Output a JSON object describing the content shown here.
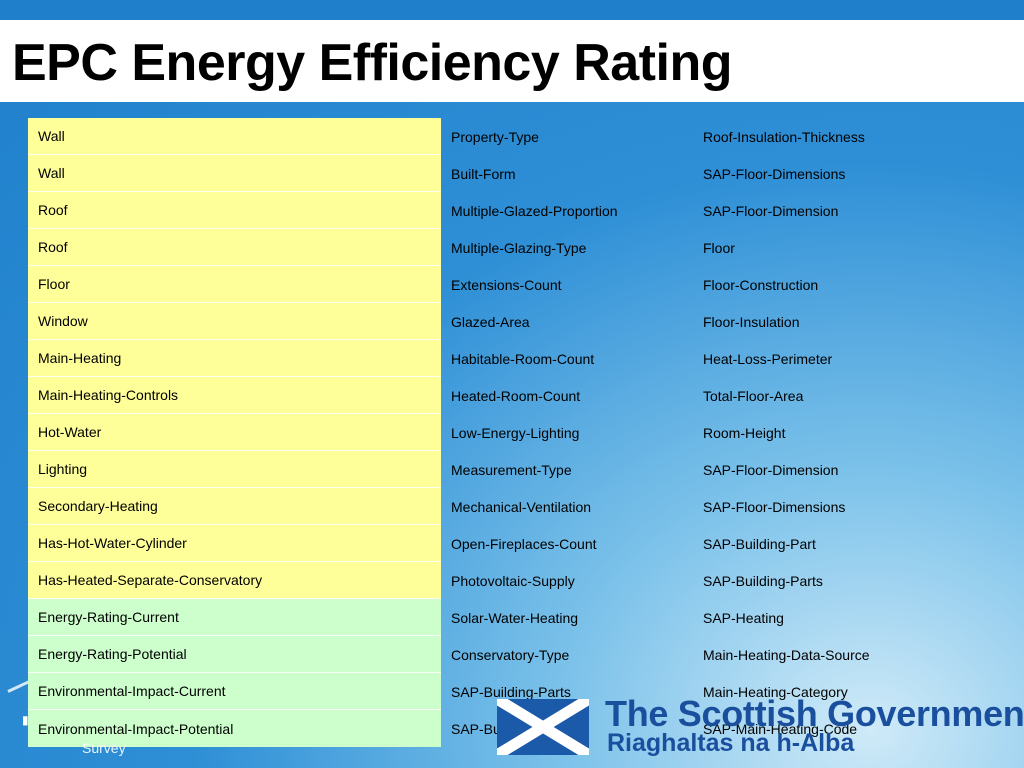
{
  "title": "EPC Energy Efficiency Rating",
  "column1": [
    {
      "label": "Wall",
      "color": "#ffff99"
    },
    {
      "label": "Wall",
      "color": "#ffff99"
    },
    {
      "label": "Roof",
      "color": "#ffff99"
    },
    {
      "label": "Roof",
      "color": "#ffff99"
    },
    {
      "label": "Floor",
      "color": "#ffff99"
    },
    {
      "label": "Window",
      "color": "#ffff99"
    },
    {
      "label": "Main-Heating",
      "color": "#ffff99"
    },
    {
      "label": "Main-Heating-Controls",
      "color": "#ffff99"
    },
    {
      "label": "Hot-Water",
      "color": "#ffff99"
    },
    {
      "label": "Lighting",
      "color": "#ffff99"
    },
    {
      "label": "Secondary-Heating",
      "color": "#ffff99"
    },
    {
      "label": "Has-Hot-Water-Cylinder",
      "color": "#ffff99"
    },
    {
      "label": "Has-Heated-Separate-Conservatory",
      "color": "#ffff99"
    },
    {
      "label": "Energy-Rating-Current",
      "color": "#ccffcc"
    },
    {
      "label": "Energy-Rating-Potential",
      "color": "#ccffcc"
    },
    {
      "label": "Environmental-Impact-Current",
      "color": "#ccffcc"
    },
    {
      "label": "Environmental-Impact-Potential",
      "color": "#ccffcc"
    }
  ],
  "column2": [
    "Property-Type",
    "Built-Form",
    "Multiple-Glazed-Proportion",
    "Multiple-Glazing-Type",
    "Extensions-Count",
    "Glazed-Area",
    "Habitable-Room-Count",
    "Heated-Room-Count",
    "Low-Energy-Lighting",
    "Measurement-Type",
    "Mechanical-Ventilation",
    "Open-Fireplaces-Count",
    "Photovoltaic-Supply",
    "Solar-Water-Heating",
    "Conservatory-Type",
    "SAP-Building-Parts",
    "SAP-Building-Part"
  ],
  "column3": [
    "Roof-Insulation-Thickness",
    "SAP-Floor-Dimensions",
    "SAP-Floor-Dimension",
    "Floor",
    "Floor-Construction",
    "Floor-Insulation",
    "Heat-Loss-Perimeter",
    "Total-Floor-Area",
    "Room-Height",
    "SAP-Floor-Dimension",
    "SAP-Floor-Dimensions",
    "SAP-Building-Part",
    "SAP-Building-Parts",
    "SAP-Heating",
    "Main-Heating-Data-Source",
    "Main-Heating-Category",
    "SAP-Main-Heating-Code"
  ],
  "logo": {
    "name": "The Scottish Government",
    "gaelic": "Riaghaltas na h-Alba",
    "icon": "saltire-flag-icon",
    "color": "#1a4f9e"
  },
  "footer": {
    "survey": "Survey"
  },
  "colors": {
    "background": "#1f7fcb",
    "yellow_cell": "#ffff99",
    "green_cell": "#ccffcc"
  }
}
